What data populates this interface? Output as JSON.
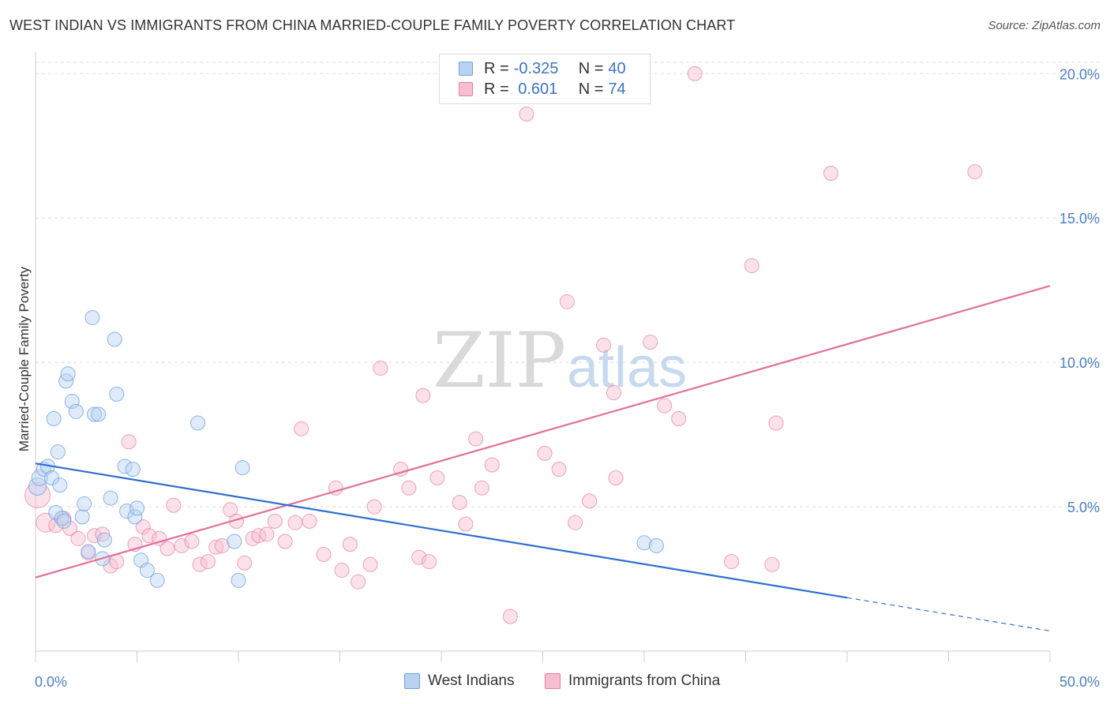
{
  "title": "WEST INDIAN VS IMMIGRANTS FROM CHINA MARRIED-COUPLE FAMILY POVERTY CORRELATION CHART",
  "source": "Source: ZipAtlas.com",
  "watermark": {
    "zip": "ZIP",
    "atlas": "atlas"
  },
  "legend": {
    "rows": [
      {
        "r_label": "R = ",
        "r_value": "-0.325",
        "n_label": "N = ",
        "n_value": "40"
      },
      {
        "r_label": "R = ",
        "r_value": " 0.601",
        "n_label": "N = ",
        "n_value": "74"
      }
    ]
  },
  "colors": {
    "blue": "#6fa3e0",
    "blue_fill": "#b9d2f1",
    "blue_line": "#2f6fcc",
    "pink": "#e87aa0",
    "pink_fill": "#f6bfd1",
    "pink_line": "#e0709a",
    "grid": "#dddddd",
    "tick_text": "#4a7fc8"
  },
  "chart_data": {
    "type": "scatter",
    "title": "WEST INDIAN VS IMMIGRANTS FROM CHINA MARRIED-COUPLE FAMILY POVERTY CORRELATION CHART",
    "xlabel": "",
    "ylabel": "Married-Couple Family Poverty",
    "xlim": [
      0,
      50
    ],
    "ylim": [
      0,
      20.5
    ],
    "x_tick_labels": [
      "0.0%",
      "50.0%"
    ],
    "y_ticks": [
      5,
      10,
      15,
      20
    ],
    "y_tick_labels": [
      "5.0%",
      "10.0%",
      "15.0%",
      "20.0%"
    ],
    "grid": true,
    "legend_position": "top-center",
    "series": [
      {
        "name": "West Indians",
        "color": "#6fa3e0",
        "r": -0.325,
        "n": 40,
        "trend": {
          "x0": 0,
          "y0": 6.5,
          "x1": 40,
          "y1": 1.85,
          "dashed_to_x": 50,
          "dashed_to_y": 0.7
        },
        "points": [
          [
            0.1,
            5.7,
            11
          ],
          [
            0.2,
            6.0,
            10
          ],
          [
            0.4,
            6.3,
            9
          ],
          [
            0.6,
            6.4,
            9
          ],
          [
            0.8,
            6.0,
            9
          ],
          [
            0.9,
            8.05,
            9
          ],
          [
            1.0,
            4.8,
            9
          ],
          [
            1.1,
            6.9,
            9
          ],
          [
            1.2,
            5.75,
            9
          ],
          [
            1.3,
            4.6,
            9
          ],
          [
            1.5,
            9.35,
            9
          ],
          [
            1.6,
            9.6,
            9
          ],
          [
            1.8,
            8.65,
            9
          ],
          [
            2.0,
            8.3,
            9
          ],
          [
            2.3,
            4.65,
            9
          ],
          [
            2.4,
            5.1,
            9
          ],
          [
            2.6,
            3.45,
            9
          ],
          [
            2.8,
            11.55,
            9
          ],
          [
            2.9,
            8.2,
            9
          ],
          [
            3.1,
            8.2,
            9
          ],
          [
            3.3,
            3.2,
            9
          ],
          [
            3.4,
            3.85,
            9
          ],
          [
            3.7,
            5.3,
            9
          ],
          [
            3.9,
            10.8,
            9
          ],
          [
            4.0,
            8.9,
            9
          ],
          [
            4.4,
            6.4,
            9
          ],
          [
            4.5,
            4.85,
            9
          ],
          [
            4.8,
            6.3,
            9
          ],
          [
            4.9,
            4.65,
            9
          ],
          [
            5.0,
            4.95,
            9
          ],
          [
            5.2,
            3.15,
            9
          ],
          [
            5.5,
            2.8,
            9
          ],
          [
            6.0,
            2.45,
            9
          ],
          [
            8.0,
            7.9,
            9
          ],
          [
            9.8,
            3.8,
            9
          ],
          [
            10.0,
            2.45,
            9
          ],
          [
            10.2,
            6.35,
            9
          ],
          [
            30.0,
            3.75,
            9
          ],
          [
            30.6,
            3.65,
            9
          ],
          [
            1.4,
            4.5,
            9
          ]
        ]
      },
      {
        "name": "Immigrants from China",
        "color": "#e87aa0",
        "r": 0.601,
        "n": 74,
        "trend": {
          "x0": 0,
          "y0": 2.55,
          "x1": 50,
          "y1": 12.65
        },
        "points": [
          [
            0.1,
            5.4,
            16
          ],
          [
            0.5,
            4.45,
            12
          ],
          [
            1.0,
            4.35,
            9
          ],
          [
            1.4,
            4.6,
            9
          ],
          [
            1.7,
            4.25,
            9
          ],
          [
            2.1,
            3.9,
            9
          ],
          [
            2.6,
            3.4,
            9
          ],
          [
            2.9,
            4.0,
            9
          ],
          [
            3.3,
            4.05,
            9
          ],
          [
            3.7,
            2.95,
            9
          ],
          [
            4.0,
            3.1,
            9
          ],
          [
            4.6,
            7.25,
            9
          ],
          [
            4.9,
            3.7,
            9
          ],
          [
            5.3,
            4.3,
            9
          ],
          [
            5.6,
            4.0,
            9
          ],
          [
            6.1,
            3.9,
            9
          ],
          [
            6.5,
            3.55,
            9
          ],
          [
            6.8,
            5.05,
            9
          ],
          [
            7.2,
            3.65,
            9
          ],
          [
            7.7,
            3.8,
            9
          ],
          [
            8.1,
            3.0,
            9
          ],
          [
            8.5,
            3.1,
            9
          ],
          [
            8.9,
            3.6,
            9
          ],
          [
            9.2,
            3.65,
            9
          ],
          [
            9.6,
            4.9,
            9
          ],
          [
            9.9,
            4.5,
            9
          ],
          [
            10.3,
            3.05,
            9
          ],
          [
            10.7,
            3.9,
            9
          ],
          [
            11.0,
            4.0,
            9
          ],
          [
            11.4,
            4.05,
            9
          ],
          [
            11.8,
            4.5,
            9
          ],
          [
            12.3,
            3.8,
            9
          ],
          [
            12.8,
            4.45,
            9
          ],
          [
            13.1,
            7.7,
            9
          ],
          [
            13.5,
            4.5,
            9
          ],
          [
            14.2,
            3.35,
            9
          ],
          [
            14.8,
            5.65,
            9
          ],
          [
            15.1,
            2.8,
            9
          ],
          [
            15.5,
            3.7,
            9
          ],
          [
            15.9,
            2.4,
            9
          ],
          [
            16.5,
            3.0,
            9
          ],
          [
            16.7,
            5.0,
            9
          ],
          [
            17.0,
            9.8,
            9
          ],
          [
            18.0,
            6.3,
            9
          ],
          [
            18.4,
            5.65,
            9
          ],
          [
            18.9,
            3.25,
            9
          ],
          [
            19.1,
            8.85,
            9
          ],
          [
            19.4,
            3.1,
            9
          ],
          [
            19.8,
            6.0,
            9
          ],
          [
            20.9,
            5.15,
            9
          ],
          [
            21.2,
            4.4,
            9
          ],
          [
            21.7,
            7.35,
            9
          ],
          [
            22.0,
            5.65,
            9
          ],
          [
            22.5,
            6.45,
            9
          ],
          [
            23.4,
            1.2,
            9
          ],
          [
            24.2,
            18.6,
            9
          ],
          [
            25.1,
            6.85,
            9
          ],
          [
            25.8,
            6.3,
            9
          ],
          [
            26.2,
            12.1,
            9
          ],
          [
            26.6,
            4.45,
            9
          ],
          [
            27.3,
            5.2,
            9
          ],
          [
            28.0,
            10.6,
            9
          ],
          [
            28.5,
            8.95,
            9
          ],
          [
            28.6,
            6.0,
            9
          ],
          [
            30.3,
            10.7,
            9
          ],
          [
            31.0,
            8.5,
            9
          ],
          [
            31.7,
            8.05,
            9
          ],
          [
            32.5,
            20.0,
            9
          ],
          [
            34.3,
            3.1,
            9
          ],
          [
            35.3,
            13.35,
            9
          ],
          [
            36.3,
            3.0,
            9
          ],
          [
            36.5,
            7.9,
            9
          ],
          [
            39.2,
            16.55,
            9
          ],
          [
            46.3,
            16.6,
            9
          ]
        ]
      }
    ]
  }
}
